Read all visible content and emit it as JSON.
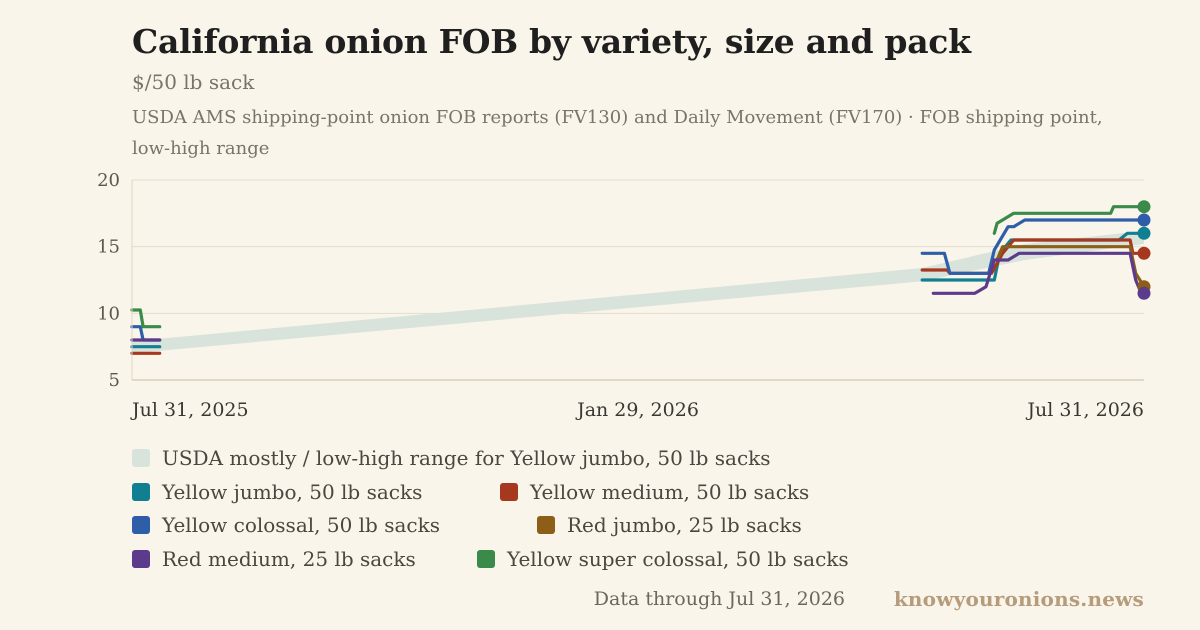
{
  "header": {
    "title": "California onion FOB by variety, size and pack",
    "subtitle": "$/50 lb sack",
    "source": "USDA AMS shipping-point onion FOB reports (FV130) and Daily Movement (FV170) · FOB shipping point, low-high range"
  },
  "footer": {
    "note": "Data through Jul 31, 2026",
    "brand": "knowyouronions.news"
  },
  "chart_data": {
    "type": "line",
    "x_axis": {
      "min": "2025-07-31",
      "max": "2026-07-31",
      "ticks": [
        "Jul 31, 2025",
        "Jan 29, 2026",
        "Jul 31, 2026"
      ]
    },
    "y_axis": {
      "min": 5,
      "max": 20,
      "ticks": [
        5,
        10,
        15,
        20
      ]
    },
    "grid": "horizontal",
    "band": {
      "name": "USDA mostly / low-high range for Yellow jumbo, 50 lb sacks",
      "color": "#d8e3dc",
      "points": [
        {
          "x": "2025-07-31",
          "low": 7.0,
          "high": 7.9
        },
        {
          "x": "2026-05-12",
          "low": 12.4,
          "high": 13.4
        },
        {
          "x": "2026-06-18",
          "low": 14.0,
          "high": 15.2
        },
        {
          "x": "2026-07-31",
          "low": 15.2,
          "high": 16.2
        }
      ]
    },
    "series": [
      {
        "name": "Yellow jumbo, 50 lb sacks",
        "color": "#117f92",
        "segments": [
          [
            [
              "2025-07-31",
              7.5
            ],
            [
              "2025-08-10",
              7.5
            ]
          ],
          [
            [
              "2026-05-12",
              12.5
            ],
            [
              "2026-06-07",
              12.5
            ],
            [
              "2026-06-09",
              14.5
            ],
            [
              "2026-06-13",
              15.5
            ],
            [
              "2026-07-22",
              15.5
            ],
            [
              "2026-07-25",
              16
            ],
            [
              "2026-07-31",
              16
            ]
          ]
        ]
      },
      {
        "name": "Yellow medium, 50 lb sacks",
        "color": "#a5381e",
        "segments": [
          [
            [
              "2025-07-31",
              7
            ],
            [
              "2025-08-10",
              7
            ]
          ],
          [
            [
              "2026-05-12",
              13.25
            ],
            [
              "2026-05-21",
              13.25
            ],
            [
              "2026-05-22",
              13
            ],
            [
              "2026-06-06",
              13
            ],
            [
              "2026-06-08",
              13.75
            ],
            [
              "2026-06-10",
              14.5
            ],
            [
              "2026-06-14",
              15.5
            ],
            [
              "2026-07-26",
              15.5
            ],
            [
              "2026-07-27",
              14.5
            ],
            [
              "2026-07-31",
              14.5
            ]
          ]
        ]
      },
      {
        "name": "Yellow colossal, 50 lb sacks",
        "color": "#2e5ea8",
        "segments": [
          [
            [
              "2025-07-31",
              9
            ],
            [
              "2025-08-03",
              9
            ],
            [
              "2025-08-04",
              8
            ],
            [
              "2025-08-10",
              8
            ]
          ],
          [
            [
              "2026-05-12",
              14.5
            ],
            [
              "2026-05-20",
              14.5
            ],
            [
              "2026-05-22",
              13
            ],
            [
              "2026-06-05",
              13
            ],
            [
              "2026-06-07",
              14.75
            ],
            [
              "2026-06-12",
              16.5
            ],
            [
              "2026-06-14",
              16.5
            ],
            [
              "2026-06-18",
              17
            ],
            [
              "2026-07-31",
              17
            ]
          ]
        ]
      },
      {
        "name": "Red jumbo, 25 lb sacks",
        "color": "#8c5e18",
        "segments": [
          [
            [
              "2026-06-08",
              14
            ],
            [
              "2026-06-10",
              15
            ],
            [
              "2026-07-26",
              15
            ],
            [
              "2026-07-28",
              13
            ],
            [
              "2026-07-31",
              12
            ]
          ]
        ]
      },
      {
        "name": "Red medium, 25 lb sacks",
        "color": "#5c3a8c",
        "segments": [
          [
            [
              "2025-07-31",
              8
            ],
            [
              "2025-08-10",
              8
            ]
          ],
          [
            [
              "2026-05-16",
              11.5
            ],
            [
              "2026-05-31",
              11.5
            ],
            [
              "2026-06-04",
              12
            ],
            [
              "2026-06-07",
              14
            ],
            [
              "2026-06-12",
              14
            ],
            [
              "2026-06-16",
              14.5
            ],
            [
              "2026-07-26",
              14.5
            ],
            [
              "2026-07-28",
              12.5
            ],
            [
              "2026-07-30",
              11.5
            ],
            [
              "2026-07-31",
              11.5
            ]
          ]
        ]
      },
      {
        "name": "Yellow super colossal, 50 lb sacks",
        "color": "#3a8a4a",
        "segments": [
          [
            [
              "2025-07-31",
              10.25
            ],
            [
              "2025-08-03",
              10.25
            ],
            [
              "2025-08-04",
              9
            ],
            [
              "2025-08-10",
              9
            ]
          ],
          [
            [
              "2026-06-07",
              16
            ],
            [
              "2026-06-08",
              16.75
            ],
            [
              "2026-06-10",
              17
            ],
            [
              "2026-06-14",
              17.5
            ],
            [
              "2026-07-19",
              17.5
            ],
            [
              "2026-07-20",
              18
            ],
            [
              "2026-07-31",
              18
            ]
          ]
        ]
      }
    ]
  }
}
